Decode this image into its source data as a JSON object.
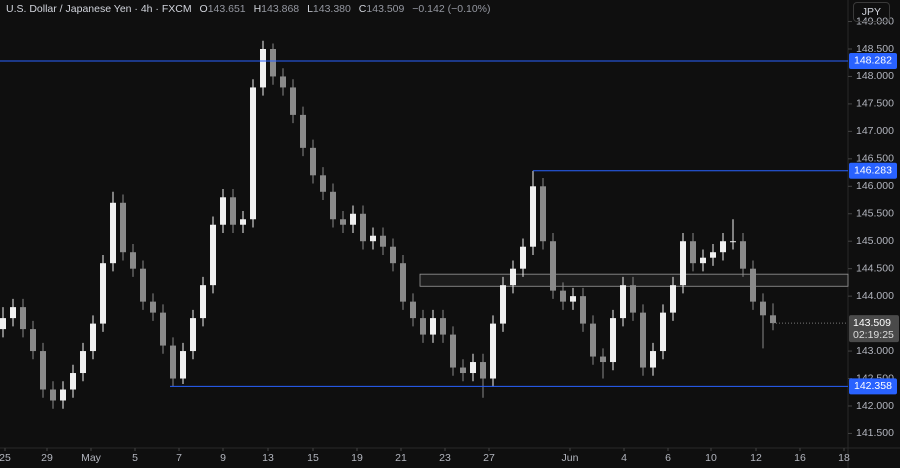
{
  "chart_data": {
    "type": "candlestick",
    "title": "U.S. Dollar / Japanese Yen · 4h · FXCM",
    "ohlc_keys": [
      "O",
      "H",
      "L",
      "C"
    ],
    "ohlc_labels": [
      "143.651",
      "143.868",
      "143.380",
      "143.509"
    ],
    "change": "−0.142 (−0.10%)",
    "currency": "JPY",
    "countdown": "02:19:25",
    "up_color": "#f0f0f0",
    "down_color": "#8a8a8a",
    "level_color": "#2962ff",
    "xlim": [
      -0.3,
      84.5
    ],
    "ylim": [
      141.235,
      149.392
    ],
    "xticks": [
      {
        "value": 0.2,
        "label": "25"
      },
      {
        "value": 4.4,
        "label": "29"
      },
      {
        "value": 8.8,
        "label": "May"
      },
      {
        "value": 13.2,
        "label": "5"
      },
      {
        "value": 17.6,
        "label": "7"
      },
      {
        "value": 22,
        "label": "9"
      },
      {
        "value": 26.5,
        "label": "13"
      },
      {
        "value": 31,
        "label": "15"
      },
      {
        "value": 35.4,
        "label": "19"
      },
      {
        "value": 39.8,
        "label": "21"
      },
      {
        "value": 44.2,
        "label": "23"
      },
      {
        "value": 48.6,
        "label": "27"
      },
      {
        "value": 56.7,
        "label": "Jun"
      },
      {
        "value": 62.1,
        "label": "4"
      },
      {
        "value": 66.5,
        "label": "6"
      },
      {
        "value": 70.8,
        "label": "10"
      },
      {
        "value": 75.3,
        "label": "12"
      },
      {
        "value": 79.7,
        "label": "16"
      },
      {
        "value": 84.1,
        "label": "18"
      }
    ],
    "yticks": [
      {
        "value": 141.5,
        "label": "141.500"
      },
      {
        "value": 142,
        "label": "142.000"
      },
      {
        "value": 142.5,
        "label": "142.500"
      },
      {
        "value": 143,
        "label": "143.000"
      },
      {
        "value": 144,
        "label": "144.000"
      },
      {
        "value": 144.5,
        "label": "144.500"
      },
      {
        "value": 145,
        "label": "145.000"
      },
      {
        "value": 145.5,
        "label": "145.500"
      },
      {
        "value": 146,
        "label": "146.000"
      },
      {
        "value": 146.5,
        "label": "146.500"
      },
      {
        "value": 147,
        "label": "147.000"
      },
      {
        "value": 147.5,
        "label": "147.500"
      },
      {
        "value": 148,
        "label": "148.000"
      },
      {
        "value": 148.5,
        "label": "148.500"
      },
      {
        "value": 149,
        "label": "149.000"
      }
    ],
    "levels": [
      {
        "value": 148.282,
        "from": -0.3
      },
      {
        "value": 146.283,
        "from": 53
      },
      {
        "value": 142.358,
        "from": 16.7
      }
    ],
    "zone": {
      "from": 41.7,
      "top": 144.4,
      "bottom": 144.18
    },
    "candles": [
      [
        143.4,
        143.8,
        143.25,
        143.6
      ],
      [
        143.6,
        143.95,
        143.45,
        143.8
      ],
      [
        143.8,
        143.95,
        143.25,
        143.4
      ],
      [
        143.4,
        143.55,
        142.85,
        143.0
      ],
      [
        143.0,
        143.15,
        142.15,
        142.3
      ],
      [
        142.3,
        142.45,
        141.95,
        142.1
      ],
      [
        142.1,
        142.45,
        141.95,
        142.3
      ],
      [
        142.3,
        142.75,
        142.15,
        142.6
      ],
      [
        142.6,
        143.15,
        142.45,
        143.0
      ],
      [
        143.0,
        143.65,
        142.85,
        143.5
      ],
      [
        143.5,
        144.75,
        143.35,
        144.6
      ],
      [
        144.6,
        145.9,
        144.45,
        145.7
      ],
      [
        145.7,
        145.85,
        144.65,
        144.8
      ],
      [
        144.8,
        144.95,
        144.35,
        144.5
      ],
      [
        144.5,
        144.65,
        143.75,
        143.9
      ],
      [
        143.9,
        144.05,
        143.55,
        143.7
      ],
      [
        143.7,
        143.85,
        142.95,
        143.1
      ],
      [
        143.1,
        143.25,
        142.36,
        142.5
      ],
      [
        142.5,
        143.15,
        142.4,
        143.0
      ],
      [
        143.0,
        143.75,
        142.85,
        143.6
      ],
      [
        143.6,
        144.35,
        143.45,
        144.2
      ],
      [
        144.2,
        145.45,
        144.05,
        145.3
      ],
      [
        145.3,
        145.95,
        145.15,
        145.8
      ],
      [
        145.8,
        145.95,
        145.15,
        145.3
      ],
      [
        145.3,
        145.55,
        145.15,
        145.4
      ],
      [
        145.4,
        147.95,
        145.25,
        147.8
      ],
      [
        147.8,
        148.65,
        147.65,
        148.5
      ],
      [
        148.5,
        148.6,
        147.85,
        148.0
      ],
      [
        148.0,
        148.15,
        147.65,
        147.8
      ],
      [
        147.8,
        147.95,
        147.15,
        147.3
      ],
      [
        147.3,
        147.45,
        146.55,
        146.7
      ],
      [
        146.7,
        146.85,
        146.05,
        146.2
      ],
      [
        146.2,
        146.35,
        145.75,
        145.9
      ],
      [
        145.9,
        146.05,
        145.25,
        145.4
      ],
      [
        145.4,
        145.55,
        145.15,
        145.3
      ],
      [
        145.3,
        145.65,
        145.15,
        145.5
      ],
      [
        145.5,
        145.65,
        144.85,
        145.0
      ],
      [
        145.0,
        145.25,
        144.85,
        145.1
      ],
      [
        145.1,
        145.25,
        144.75,
        144.9
      ],
      [
        144.9,
        145.05,
        144.45,
        144.6
      ],
      [
        144.6,
        144.75,
        143.75,
        143.9
      ],
      [
        143.9,
        144.05,
        143.45,
        143.6
      ],
      [
        143.6,
        143.75,
        143.15,
        143.3
      ],
      [
        143.3,
        143.75,
        143.15,
        143.6
      ],
      [
        143.6,
        143.75,
        143.15,
        143.3
      ],
      [
        143.3,
        143.45,
        142.55,
        142.7
      ],
      [
        142.7,
        142.85,
        142.45,
        142.6
      ],
      [
        142.6,
        142.95,
        142.45,
        142.8
      ],
      [
        142.8,
        142.95,
        142.15,
        142.5
      ],
      [
        142.5,
        143.65,
        142.35,
        143.5
      ],
      [
        143.5,
        144.35,
        143.35,
        144.2
      ],
      [
        144.2,
        144.65,
        144.05,
        144.5
      ],
      [
        144.5,
        145.05,
        144.35,
        144.9
      ],
      [
        144.9,
        146.28,
        144.75,
        146.0
      ],
      [
        146.0,
        146.15,
        144.85,
        145.0
      ],
      [
        145.0,
        145.15,
        143.95,
        144.1
      ],
      [
        144.1,
        144.25,
        143.75,
        143.9
      ],
      [
        143.9,
        144.15,
        143.75,
        144.0
      ],
      [
        144.0,
        144.15,
        143.35,
        143.5
      ],
      [
        143.5,
        143.65,
        142.75,
        142.9
      ],
      [
        142.9,
        143.05,
        142.5,
        142.8
      ],
      [
        142.8,
        143.75,
        142.65,
        143.6
      ],
      [
        143.6,
        144.35,
        143.45,
        144.2
      ],
      [
        144.2,
        144.35,
        143.55,
        143.7
      ],
      [
        143.7,
        143.85,
        142.55,
        142.7
      ],
      [
        142.7,
        143.15,
        142.55,
        143.0
      ],
      [
        143.0,
        143.85,
        142.85,
        143.7
      ],
      [
        143.7,
        144.35,
        143.55,
        144.2
      ],
      [
        144.2,
        145.15,
        144.05,
        145.0
      ],
      [
        145.0,
        145.15,
        144.45,
        144.6
      ],
      [
        144.6,
        144.85,
        144.45,
        144.7
      ],
      [
        144.7,
        144.95,
        144.55,
        144.8
      ],
      [
        144.8,
        145.15,
        144.65,
        145.0
      ],
      [
        145.0,
        145.4,
        144.85,
        145.0
      ],
      [
        145.0,
        145.15,
        144.35,
        144.5
      ],
      [
        144.5,
        144.65,
        143.75,
        143.9
      ],
      [
        143.9,
        144.05,
        143.05,
        143.651
      ],
      [
        143.651,
        143.868,
        143.38,
        143.509
      ]
    ]
  }
}
